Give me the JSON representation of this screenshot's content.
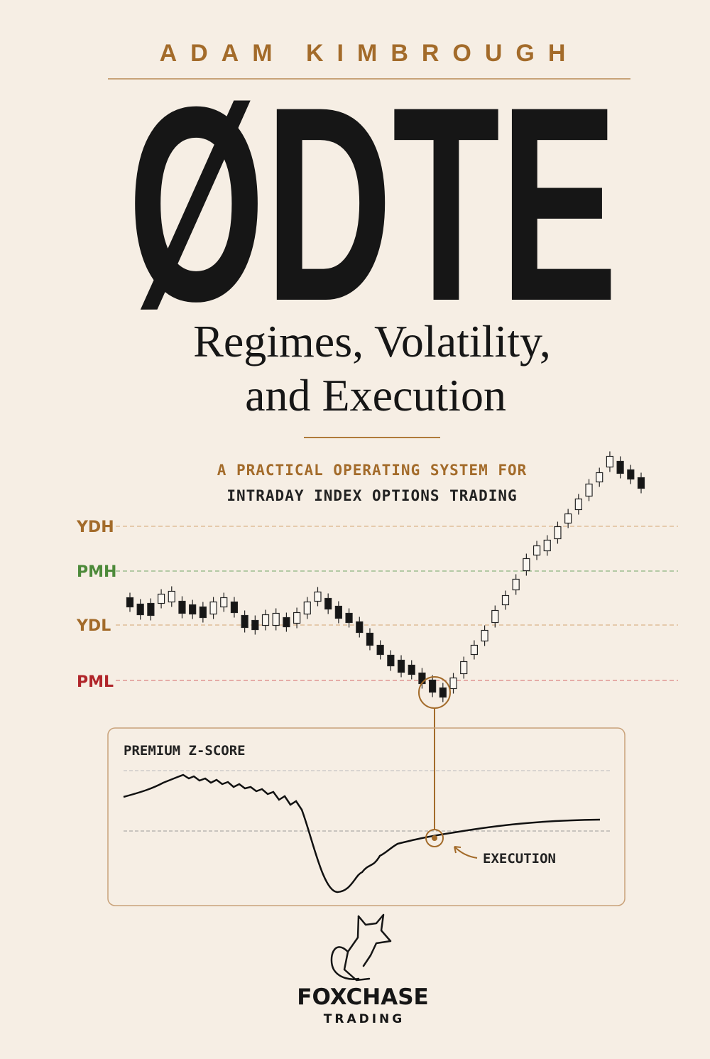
{
  "author": "ADAM KIMBROUGH",
  "title": "ØDTE",
  "subtitle_lines": [
    "Regimes, Volatility,",
    "and Execution"
  ],
  "tagline_lines": [
    "A PRACTICAL OPERATING SYSTEM FOR",
    "INTRADAY INDEX OPTIONS TRADING"
  ],
  "levels": [
    "YDH",
    "PMH",
    "YDL",
    "PML"
  ],
  "panel": {
    "title": "PREMIUM Z-SCORE",
    "annotation": "EXECUTION"
  },
  "publisher": {
    "name": "FOXCHASE",
    "tagline": "TRADING"
  }
}
